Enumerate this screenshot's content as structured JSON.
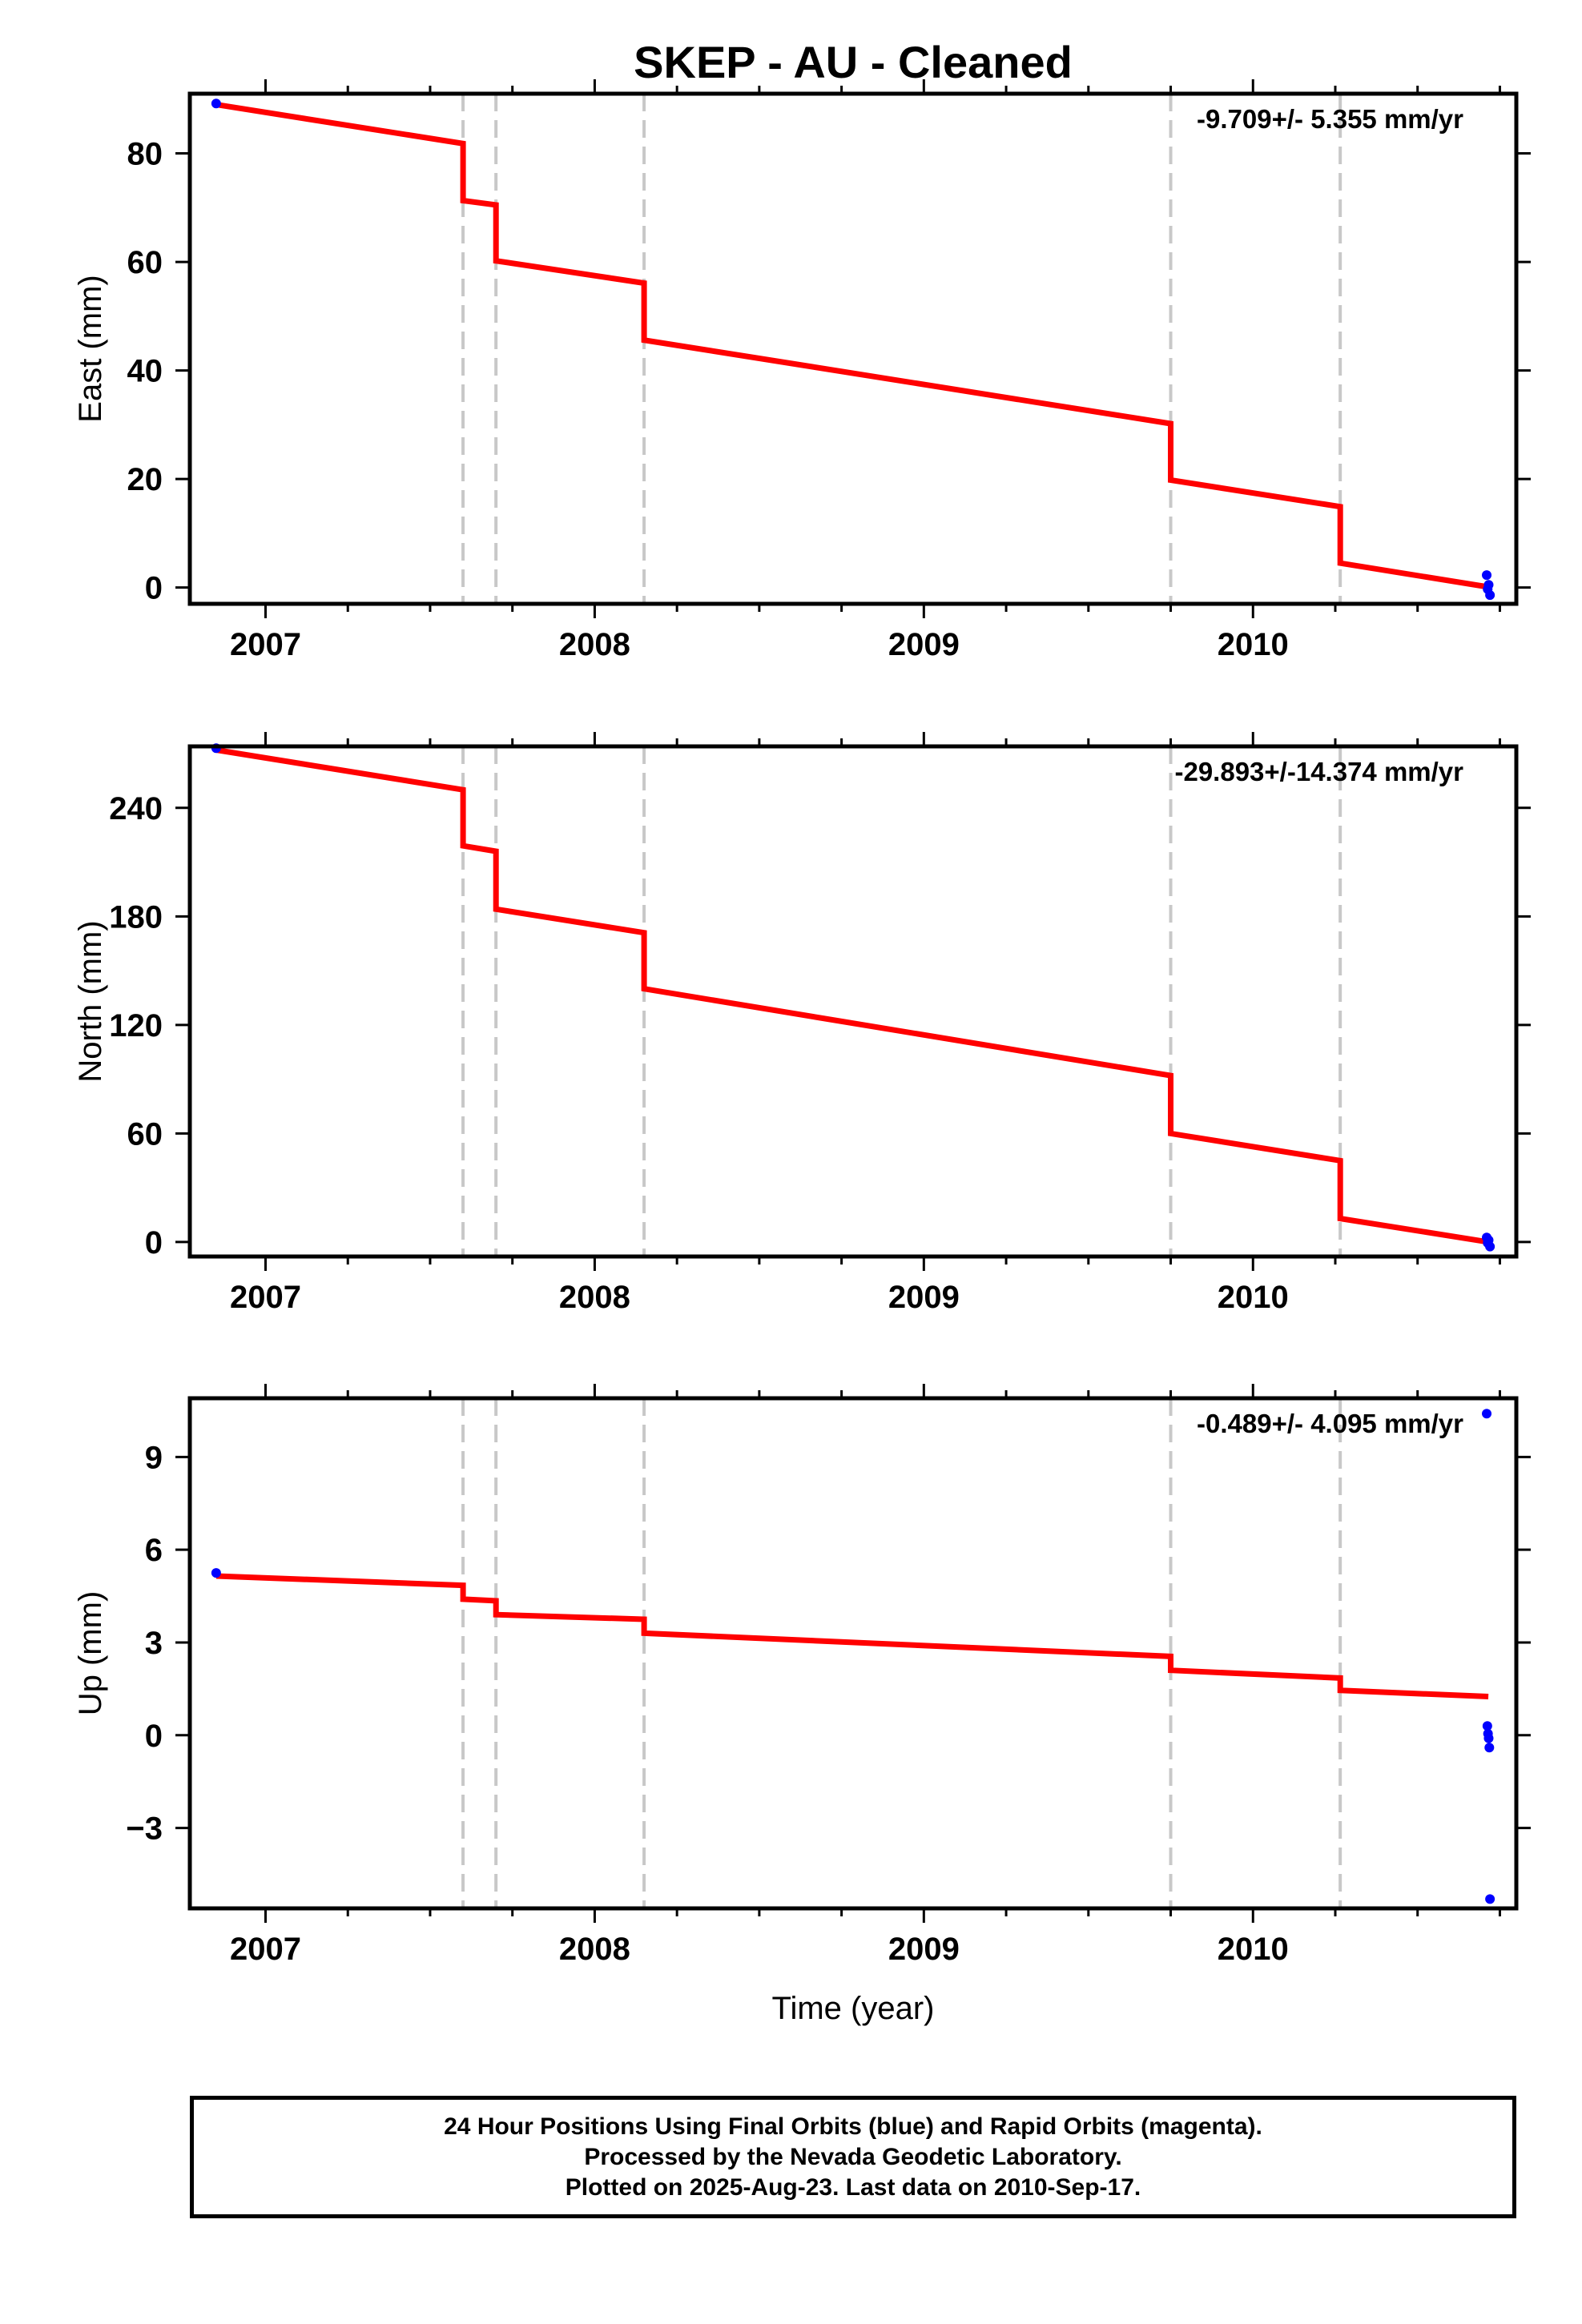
{
  "title": "SKEP  - AU - Cleaned",
  "colors": {
    "model_line": "#ff0000",
    "final_orbits": "#0000ff",
    "rapid_orbits": "#ff00ff",
    "break_lines": "#c8c8c8",
    "frame": "#000000"
  },
  "footer": {
    "line1": "24 Hour Positions Using Final Orbits (blue) and Rapid Orbits (magenta).",
    "line2": "Processed by the Nevada Geodetic Laboratory.",
    "line3": "Plotted on 2025-Aug-23. Last data on 2010-Sep-17."
  },
  "chart_data": [
    {
      "type": "line",
      "panel": "east",
      "ylabel": "East (mm)",
      "xlabel": "",
      "rate_label": "-9.709+/- 5.355 mm/yr",
      "xlim": [
        2006.77,
        2010.8
      ],
      "ylim": [
        -3,
        91
      ],
      "yticks": [
        0,
        20,
        40,
        60,
        80
      ],
      "ytick_labels": [
        "0",
        "20",
        "40",
        "60",
        "80"
      ],
      "xticks": [
        2007,
        2008,
        2009,
        2010
      ],
      "xtick_labels": [
        "2007",
        "2008",
        "2009",
        "2010"
      ],
      "minor_xticks": [
        2006.75,
        2007.25,
        2007.5,
        2007.75,
        2008.25,
        2008.5,
        2008.75,
        2009.25,
        2009.5,
        2009.75,
        2010.25,
        2010.5,
        2010.75
      ],
      "breaks": [
        2007.6,
        2007.7,
        2008.15,
        2009.75,
        2010.265
      ],
      "series": [
        {
          "role": "model",
          "x": [
            2006.85,
            2007.6,
            2007.6,
            2007.7,
            2007.7,
            2008.15,
            2008.15,
            2009.75,
            2009.75,
            2010.265,
            2010.265,
            2010.715
          ],
          "y": [
            89,
            81.8,
            71.3,
            70.5,
            60.2,
            56.1,
            45.6,
            30.2,
            19.8,
            14.9,
            4.5,
            0.1
          ]
        },
        {
          "role": "final",
          "x": [
            2006.85,
            2010.71,
            2010.713,
            2010.716,
            2010.72
          ],
          "y": [
            89.2,
            2.3,
            -0.3,
            0.5,
            -1.4
          ]
        }
      ]
    },
    {
      "type": "line",
      "panel": "north",
      "ylabel": "North (mm)",
      "xlabel": "",
      "rate_label": "-29.893+/-14.374 mm/yr",
      "xlim": [
        2006.77,
        2010.8
      ],
      "ylim": [
        -8,
        274
      ],
      "yticks": [
        0,
        60,
        120,
        180,
        240
      ],
      "ytick_labels": [
        "0",
        "60",
        "120",
        "180",
        "240"
      ],
      "xticks": [
        2007,
        2008,
        2009,
        2010
      ],
      "xtick_labels": [
        "2007",
        "2008",
        "2009",
        "2010"
      ],
      "minor_xticks": [
        2006.75,
        2007.25,
        2007.5,
        2007.75,
        2008.25,
        2008.5,
        2008.75,
        2009.25,
        2009.5,
        2009.75,
        2010.25,
        2010.5,
        2010.75
      ],
      "breaks": [
        2007.6,
        2007.7,
        2008.15,
        2009.75,
        2010.265
      ],
      "series": [
        {
          "role": "model",
          "x": [
            2006.85,
            2007.6,
            2007.6,
            2007.7,
            2007.7,
            2008.15,
            2008.15,
            2009.75,
            2009.75,
            2010.265,
            2010.265,
            2010.715
          ],
          "y": [
            272,
            250,
            219,
            216,
            184,
            171,
            140,
            92,
            60,
            45,
            13,
            0
          ]
        },
        {
          "role": "final",
          "x": [
            2006.85,
            2010.71,
            2010.713,
            2010.716,
            2010.72
          ],
          "y": [
            273,
            2.5,
            -0.5,
            1,
            -2.5
          ]
        }
      ]
    },
    {
      "type": "line",
      "panel": "up",
      "ylabel": "Up (mm)",
      "xlabel": "Time (year)",
      "rate_label": "-0.489+/- 4.095 mm/yr",
      "xlim": [
        2006.77,
        2010.8
      ],
      "ylim": [
        -5.6,
        10.9
      ],
      "yticks": [
        -3,
        0,
        3,
        6,
        9
      ],
      "ytick_labels": [
        "−3",
        "0",
        "3",
        "6",
        "9"
      ],
      "xticks": [
        2007,
        2008,
        2009,
        2010
      ],
      "xtick_labels": [
        "2007",
        "2008",
        "2009",
        "2010"
      ],
      "minor_xticks": [
        2006.75,
        2007.25,
        2007.5,
        2007.75,
        2008.25,
        2008.5,
        2008.75,
        2009.25,
        2009.5,
        2009.75,
        2010.25,
        2010.5,
        2010.75
      ],
      "breaks": [
        2007.6,
        2007.7,
        2008.15,
        2009.75,
        2010.265
      ],
      "series": [
        {
          "role": "model",
          "x": [
            2006.85,
            2007.6,
            2007.6,
            2007.7,
            2007.7,
            2008.15,
            2008.15,
            2009.75,
            2009.75,
            2010.265,
            2010.265,
            2010.715
          ],
          "y": [
            5.15,
            4.85,
            4.4,
            4.35,
            3.9,
            3.75,
            3.3,
            2.55,
            2.1,
            1.85,
            1.45,
            1.25
          ]
        },
        {
          "role": "final",
          "x": [
            2006.85,
            2010.71,
            2010.712,
            2010.714,
            2010.716,
            2010.718,
            2010.72
          ],
          "y": [
            5.25,
            10.4,
            0.3,
            0.05,
            -0.1,
            -0.4,
            -5.3
          ]
        }
      ]
    }
  ]
}
